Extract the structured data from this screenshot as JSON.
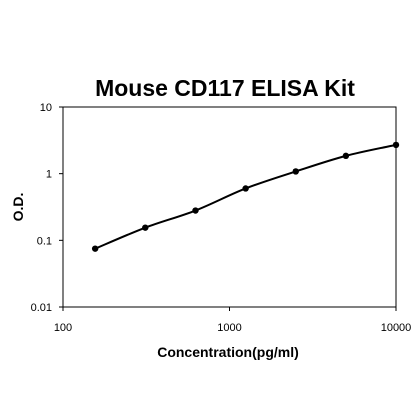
{
  "chart_data": {
    "type": "scatter",
    "title": "Mouse CD117 ELISA Kit",
    "xlabel": "Concentration(pg/ml)",
    "ylabel": "O.D.",
    "x_scale": "log",
    "y_scale": "log",
    "xlim": [
      100,
      10000
    ],
    "ylim": [
      0.01,
      10
    ],
    "x_ticks": [
      "100",
      "1000",
      "10000"
    ],
    "y_ticks": [
      "10",
      "1",
      "0.1",
      "0.01"
    ],
    "grid": false,
    "legend": "none",
    "line_color": "#000000",
    "marker_color": "#000000",
    "series": [
      {
        "x": [
          156,
          312,
          625,
          1250,
          2500,
          5000,
          10000
        ],
        "y": [
          0.075,
          0.155,
          0.28,
          0.6,
          1.08,
          1.85,
          2.7
        ]
      }
    ]
  }
}
